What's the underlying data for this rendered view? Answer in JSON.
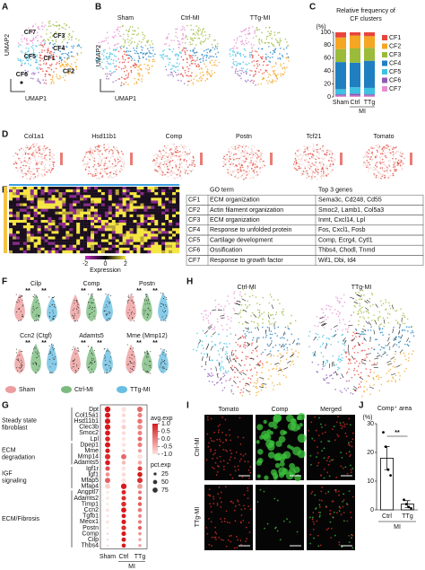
{
  "panel_labels": [
    "A",
    "B",
    "C",
    "D",
    "E",
    "F",
    "G",
    "H",
    "I",
    "J"
  ],
  "umap_a": {
    "clusters": [
      "CF7",
      "CF3",
      "CF4",
      "CF5",
      "CF1",
      "CF6",
      "CF2"
    ],
    "x_label": "UMAP1",
    "y_label": "UMAP2"
  },
  "umap_b": {
    "titles": [
      "Sham",
      "Ctrl-MI",
      "TTg-MI"
    ],
    "x_label": "UMAP1",
    "y_label": "UMAP2"
  },
  "feature_plots": {
    "genes": [
      "Col1a1",
      "Hsd11b1",
      "Comp",
      "Postn",
      "Tcf21",
      "Tomato"
    ]
  },
  "heatmap": {
    "colorbar_ticks": [
      -2,
      0,
      2
    ],
    "colorbar_label": "Expression"
  },
  "go_table": {
    "header": [
      "GO term",
      "Top 3 genes"
    ],
    "rows": [
      [
        "CF1",
        "ECM organization",
        "Sema3c, Cd248, Cd55"
      ],
      [
        "CF2",
        "Actin filament organization",
        "Smoc2, Lamb1, Col5a3"
      ],
      [
        "CF3",
        "ECM organization",
        "Inmt, Cxcl14, Lpl"
      ],
      [
        "CF4",
        "Response to unfolded protein",
        "Fos, Cxcl1, Fosb"
      ],
      [
        "CF5",
        "Cartilage development",
        "Comp, Ecrg4, Cytl1"
      ],
      [
        "CF6",
        "Ossification",
        "Thbs4, Chodl, Tnmd"
      ],
      [
        "CF7",
        "Response to growth factor",
        "Wif1, Dbi, Id4"
      ]
    ]
  },
  "violin": {
    "genes": [
      {
        "name": "Cilp",
        "marks": [
          "**",
          "**"
        ]
      },
      {
        "name": "Comp",
        "marks": [
          "**",
          "**"
        ]
      },
      {
        "name": "Postn",
        "marks": [
          "**",
          "**"
        ]
      },
      {
        "name": "Ccn2 (Ctgf)",
        "marks": [
          "**",
          "**"
        ]
      },
      {
        "name": "Adamts5",
        "marks": [
          "**",
          "**"
        ]
      },
      {
        "name": "Mme (Mmp12)",
        "marks": [
          "**",
          "**"
        ]
      }
    ],
    "groups": [
      {
        "name": "Sham",
        "color": "#e57373"
      },
      {
        "name": "Ctrl-MI",
        "color": "#43a047"
      },
      {
        "name": "TTg-MI",
        "color": "#29a3d6"
      }
    ]
  },
  "velocity": {
    "titles": [
      "Ctrl-MI",
      "TTg-MI"
    ]
  },
  "imaging": {
    "columns": [
      "Tomato",
      "Comp",
      "Merged"
    ],
    "rows": [
      "Ctrl-MI",
      "TTg-MI"
    ]
  },
  "chart_data": [
    {
      "type": "bar",
      "stacked": true,
      "title": [
        "Relative frequency of",
        "CF clusters"
      ],
      "ylabel": "(%)",
      "categories": [
        "Sham",
        "Ctrl",
        "TTg"
      ],
      "group_label": "MI",
      "ylim": [
        0,
        100
      ],
      "yticks": [
        0,
        20,
        40,
        60,
        80,
        100
      ],
      "series": [
        {
          "name": "CF1",
          "color": "#e8453c",
          "values": [
            8,
            5,
            6
          ]
        },
        {
          "name": "CF2",
          "color": "#f5a623",
          "values": [
            18,
            20,
            18
          ]
        },
        {
          "name": "CF3",
          "color": "#9bbb3b",
          "values": [
            20,
            22,
            20
          ]
        },
        {
          "name": "CF4",
          "color": "#1f7fc1",
          "values": [
            42,
            38,
            42
          ]
        },
        {
          "name": "CF5",
          "color": "#3fc1e3",
          "values": [
            8,
            10,
            10
          ]
        },
        {
          "name": "CF6",
          "color": "#8e5bb5",
          "values": [
            2,
            3,
            2
          ]
        },
        {
          "name": "CF7",
          "color": "#e58fd0",
          "values": [
            2,
            2,
            2
          ]
        }
      ]
    },
    {
      "type": "dot",
      "categories": [
        "Sham",
        "Ctrl",
        "TTg"
      ],
      "group_label": "MI",
      "avg_title": "avg.exp",
      "pct_title": "pct.exp",
      "avg_lim": [
        -1,
        1
      ],
      "avg_ticks": [
        {
          "value": 1,
          "label": "1.0"
        },
        {
          "value": 0.5,
          "label": "0.5"
        },
        {
          "value": 0,
          "label": "0.0"
        },
        {
          "value": -0.5,
          "label": "-0.5"
        },
        {
          "value": -1,
          "label": "-1.0"
        }
      ],
      "pct_ticks": [
        25,
        50,
        75
      ],
      "low_color": "#fde2de",
      "high_color": "#d7191c",
      "gene_groups": [
        {
          "label": [
            "Steady state",
            "fibroblast"
          ],
          "genes": [
            {
              "name": "Dpt",
              "avg": [
                1.0,
                -1.0,
                0.2
              ],
              "pct": [
                95,
                70,
                85
              ]
            },
            {
              "name": "Col15a1",
              "avg": [
                1.0,
                -0.9,
                0.0
              ],
              "pct": [
                80,
                40,
                60
              ]
            },
            {
              "name": "Hsd11b1",
              "avg": [
                1.0,
                -1.0,
                0.1
              ],
              "pct": [
                85,
                50,
                70
              ]
            },
            {
              "name": "Clec3b",
              "avg": [
                1.0,
                -0.8,
                -0.2
              ],
              "pct": [
                90,
                60,
                75
              ]
            },
            {
              "name": "Smoc2",
              "avg": [
                1.0,
                -0.9,
                0.0
              ],
              "pct": [
                75,
                40,
                55
              ]
            },
            {
              "name": "Lpl",
              "avg": [
                0.9,
                -1.0,
                0.2
              ],
              "pct": [
                70,
                35,
                55
              ]
            }
          ]
        },
        {
          "label": [
            "ECM",
            "degradation"
          ],
          "genes": [
            {
              "name": "Dpep1",
              "avg": [
                1.0,
                -1.0,
                0.0
              ],
              "pct": [
                80,
                45,
                60
              ]
            },
            {
              "name": "Mme",
              "avg": [
                1.0,
                -0.8,
                -0.3
              ],
              "pct": [
                60,
                25,
                40
              ]
            },
            {
              "name": "Mmp14",
              "avg": [
                0.8,
                0.2,
                -1.0
              ],
              "pct": [
                85,
                80,
                75
              ]
            },
            {
              "name": "Adamts5",
              "avg": [
                1.0,
                -0.6,
                -0.4
              ],
              "pct": [
                70,
                45,
                50
              ]
            }
          ]
        },
        {
          "label": [
            "IGF",
            "signaling"
          ],
          "genes": [
            {
              "name": "Igf1r",
              "avg": [
                0.5,
                -1.1,
                0.6
              ],
              "pct": [
                60,
                50,
                60
              ]
            },
            {
              "name": "Igf1",
              "avg": [
                -0.2,
                -0.9,
                1.1
              ],
              "pct": [
                50,
                45,
                70
              ]
            },
            {
              "name": "Mfap5",
              "avg": [
                0.3,
                -1.1,
                0.8
              ],
              "pct": [
                80,
                65,
                80
              ]
            },
            {
              "name": "Mfap4",
              "avg": [
                -0.8,
                1.1,
                -0.3
              ],
              "pct": [
                75,
                90,
                75
              ]
            }
          ]
        },
        {
          "label": [
            "ECM/Fibrosis"
          ],
          "genes": [
            {
              "name": "Angptl7",
              "avg": [
                -1.0,
                0.9,
                0.1
              ],
              "pct": [
                20,
                55,
                35
              ]
            },
            {
              "name": "Adamts2",
              "avg": [
                -1.1,
                0.8,
                0.3
              ],
              "pct": [
                25,
                60,
                40
              ]
            },
            {
              "name": "Timp1",
              "avg": [
                -1.1,
                0.8,
                0.3
              ],
              "pct": [
                15,
                70,
                45
              ]
            },
            {
              "name": "Ccn2",
              "avg": [
                -1.0,
                1.0,
                0.0
              ],
              "pct": [
                30,
                75,
                50
              ]
            },
            {
              "name": "Tgfb1",
              "avg": [
                -1.0,
                1.0,
                0.0
              ],
              "pct": [
                20,
                55,
                35
              ]
            },
            {
              "name": "Meox1",
              "avg": [
                -1.0,
                1.0,
                0.0
              ],
              "pct": [
                30,
                60,
                40
              ]
            },
            {
              "name": "Postn",
              "avg": [
                -1.1,
                0.8,
                0.3
              ],
              "pct": [
                10,
                65,
                40
              ]
            },
            {
              "name": "Comp",
              "avg": [
                -0.9,
                1.1,
                -0.2
              ],
              "pct": [
                15,
                60,
                30
              ]
            },
            {
              "name": "Cilp",
              "avg": [
                -0.8,
                1.1,
                -0.3
              ],
              "pct": [
                10,
                55,
                25
              ]
            },
            {
              "name": "Thbs4",
              "avg": [
                -0.8,
                1.1,
                -0.3
              ],
              "pct": [
                10,
                50,
                25
              ]
            }
          ]
        }
      ]
    },
    {
      "type": "bar",
      "title": "Comp⁺ area",
      "ylabel": "(%)",
      "categories": [
        "Ctrl",
        "TTg"
      ],
      "group_label": "MI",
      "values": [
        18,
        2
      ],
      "errors": [
        4,
        1.2
      ],
      "points": [
        [
          27,
          22,
          14,
          12
        ],
        [
          3.5,
          2,
          1,
          0.5
        ]
      ],
      "significance": "**",
      "color": "#ffffff",
      "ylim": [
        0,
        30
      ],
      "yticks": [
        0,
        10,
        20,
        30
      ]
    }
  ]
}
